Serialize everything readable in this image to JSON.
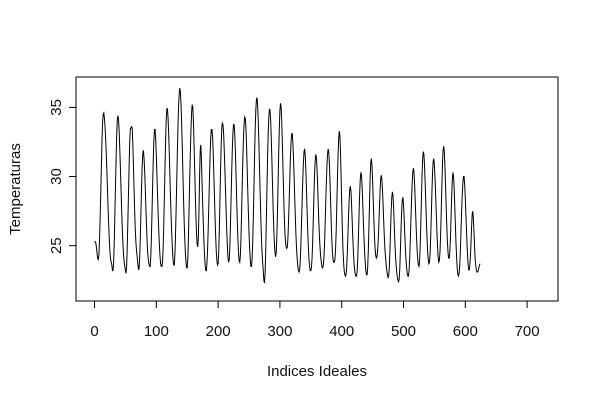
{
  "chart_data": {
    "type": "line",
    "title": "",
    "xlabel": "Indices Ideales",
    "ylabel": "Temperaturas",
    "xlim": [
      -30,
      750
    ],
    "ylim": [
      21.0,
      37.2
    ],
    "x_ticks": [
      0,
      100,
      200,
      300,
      400,
      500,
      600,
      700
    ],
    "y_ticks": [
      25,
      30,
      35
    ],
    "grid": false,
    "legend": "none",
    "line_color": "#000000",
    "series": [
      {
        "x_start": 0,
        "x_step": 1,
        "values": [
          25.3,
          25.3,
          25.2,
          24.9,
          24.5,
          24.1,
          24.0,
          24.3,
          25.3,
          26.9,
          28.7,
          30.6,
          32.5,
          33.9,
          34.5,
          34.6,
          34.2,
          33.6,
          32.7,
          31.6,
          30.4,
          29.0,
          27.6,
          26.4,
          25.3,
          24.5,
          24.0,
          23.8,
          23.6,
          23.2,
          23.2,
          23.9,
          25.4,
          27.5,
          29.5,
          31.5,
          33.2,
          34.2,
          34.4,
          34.0,
          33.1,
          31.8,
          30.4,
          28.9,
          27.4,
          26.1,
          25.1,
          24.3,
          23.8,
          23.5,
          23.2,
          23.0,
          23.6,
          25.0,
          26.9,
          28.9,
          30.9,
          32.6,
          33.5,
          33.5,
          33.6,
          33.5,
          32.3,
          30.7,
          29.0,
          27.4,
          26.1,
          25.2,
          24.6,
          24.2,
          23.7,
          23.3,
          23.3,
          24.1,
          25.5,
          27.3,
          29.1,
          30.6,
          31.6,
          31.9,
          31.4,
          30.5,
          29.3,
          27.9,
          26.6,
          25.4,
          24.5,
          24.0,
          23.7,
          23.5,
          23.5,
          24.2,
          25.5,
          27.4,
          29.4,
          31.2,
          32.6,
          33.4,
          33.4,
          32.7,
          31.5,
          30.1,
          28.6,
          27.2,
          26.0,
          25.0,
          24.2,
          23.7,
          23.5,
          23.5,
          23.8,
          24.8,
          26.5,
          28.5,
          30.6,
          32.6,
          34.1,
          34.9,
          34.9,
          34.2,
          33.1,
          31.6,
          30.0,
          28.4,
          27.0,
          25.8,
          24.8,
          24.0,
          23.6,
          23.6,
          24.3,
          25.7,
          27.6,
          29.6,
          31.7,
          33.6,
          35.1,
          36.0,
          36.4,
          36.1,
          35.2,
          33.8,
          32.1,
          30.2,
          28.4,
          26.8,
          25.5,
          24.5,
          23.8,
          23.4,
          23.4,
          24.1,
          25.7,
          27.7,
          29.8,
          31.7,
          33.3,
          34.6,
          35.2,
          35.0,
          34.0,
          32.4,
          30.6,
          28.8,
          27.2,
          25.9,
          25.1,
          24.9,
          25.6,
          27.5,
          30.0,
          31.9,
          32.3,
          31.2,
          29.5,
          28.0,
          26.6,
          25.3,
          24.3,
          23.6,
          23.2,
          23.2,
          23.8,
          24.8,
          26.3,
          28.1,
          29.9,
          31.5,
          32.8,
          33.4,
          33.4,
          32.9,
          31.8,
          30.3,
          28.7,
          27.1,
          25.7,
          24.6,
          23.9,
          23.6,
          23.7,
          24.6,
          26.3,
          28.4,
          30.6,
          32.4,
          33.6,
          33.9,
          33.7,
          33.0,
          31.8,
          30.4,
          28.9,
          27.4,
          26.0,
          24.9,
          24.1,
          23.8,
          24.0,
          25.0,
          26.6,
          28.5,
          30.4,
          32.0,
          33.2,
          33.8,
          33.7,
          33.0,
          31.7,
          30.1,
          28.4,
          26.8,
          25.5,
          24.5,
          23.9,
          23.8,
          24.3,
          25.6,
          27.4,
          29.4,
          31.3,
          32.8,
          33.8,
          34.3,
          34.2,
          33.5,
          32.2,
          30.6,
          28.9,
          27.3,
          25.9,
          24.8,
          24.0,
          23.5,
          23.5,
          24.1,
          25.3,
          27.1,
          29.3,
          31.5,
          33.5,
          34.8,
          35.6,
          35.7,
          35.1,
          34.0,
          32.4,
          30.6,
          28.8,
          27.1,
          25.7,
          24.6,
          23.8,
          23.2,
          22.5,
          22.3,
          23.0,
          24.6,
          26.8,
          29.1,
          31.3,
          33.1,
          34.3,
          34.9,
          34.8,
          34.1,
          32.8,
          31.2,
          29.4,
          27.7,
          26.3,
          25.2,
          24.5,
          24.2,
          24.5,
          25.6,
          27.4,
          29.5,
          31.6,
          33.5,
          34.8,
          35.3,
          35.0,
          33.9,
          32.3,
          30.5,
          28.8,
          27.2,
          26.0,
          25.3,
          24.9,
          24.8,
          24.9,
          25.6,
          26.8,
          28.3,
          29.9,
          31.4,
          32.5,
          33.1,
          33.1,
          32.4,
          31.3,
          29.9,
          28.4,
          27.0,
          25.7,
          24.7,
          24.0,
          23.5,
          23.2,
          23.1,
          23.3,
          24.0,
          25.2,
          26.7,
          28.3,
          29.8,
          31.0,
          31.8,
          32.0,
          31.5,
          30.4,
          29.0,
          27.5,
          26.1,
          24.9,
          24.0,
          23.5,
          23.2,
          23.2,
          23.4,
          24.1,
          25.3,
          26.9,
          28.6,
          30.1,
          31.1,
          31.6,
          31.4,
          30.6,
          29.4,
          28.0,
          26.7,
          25.6,
          24.8,
          24.2,
          23.8,
          23.5,
          23.4,
          23.5,
          24.0,
          24.9,
          26.3,
          27.9,
          29.4,
          30.7,
          31.6,
          32.0,
          31.8,
          31.0,
          29.7,
          28.2,
          26.7,
          25.4,
          24.5,
          24.0,
          23.8,
          23.8,
          24.0,
          24.7,
          26.0,
          27.8,
          29.7,
          31.4,
          32.7,
          33.3,
          33.0,
          31.8,
          30.0,
          28.0,
          26.2,
          24.8,
          23.8,
          23.2,
          22.9,
          22.8,
          22.9,
          23.4,
          24.4,
          25.7,
          27.1,
          28.3,
          29.1,
          29.3,
          28.9,
          27.9,
          26.7,
          25.5,
          24.5,
          23.7,
          23.2,
          22.9,
          22.8,
          22.8,
          23.2,
          24.1,
          25.6,
          27.2,
          28.7,
          29.8,
          30.3,
          30.1,
          29.3,
          28.1,
          26.8,
          25.6,
          24.6,
          23.8,
          23.2,
          22.9,
          22.9,
          23.4,
          24.6,
          26.3,
          28.2,
          29.9,
          31.0,
          31.3,
          30.8,
          29.7,
          28.3,
          26.9,
          25.7,
          24.8,
          24.3,
          24.1,
          24.2,
          24.6,
          25.3,
          26.4,
          27.7,
          28.9,
          29.8,
          30.1,
          29.8,
          29.0,
          27.9,
          26.7,
          25.6,
          24.7,
          24.1,
          23.6,
          23.2,
          22.9,
          22.7,
          22.8,
          23.4,
          24.6,
          26.1,
          27.5,
          28.5,
          28.9,
          28.6,
          27.7,
          26.5,
          25.3,
          24.3,
          23.6,
          23.1,
          22.7,
          22.5,
          22.4,
          22.6,
          23.4,
          24.7,
          26.2,
          27.5,
          28.3,
          28.5,
          28.0,
          27.0,
          25.9,
          24.8,
          24.0,
          23.4,
          23.0,
          22.8,
          22.8,
          23.2,
          24.1,
          25.4,
          26.9,
          28.3,
          29.5,
          30.3,
          30.6,
          30.3,
          29.4,
          28.2,
          26.9,
          25.7,
          24.7,
          24.0,
          23.6,
          23.5,
          23.9,
          25.0,
          26.6,
          28.4,
          30.1,
          31.3,
          31.8,
          31.6,
          30.8,
          29.6,
          28.2,
          26.8,
          25.6,
          24.6,
          24.0,
          23.7,
          23.8,
          24.4,
          25.6,
          27.2,
          28.9,
          30.3,
          31.1,
          31.3,
          30.8,
          29.9,
          28.7,
          27.4,
          26.1,
          25.0,
          24.2,
          23.8,
          23.9,
          24.5,
          25.7,
          27.4,
          29.2,
          30.8,
          31.9,
          32.2,
          31.8,
          30.8,
          29.4,
          27.9,
          26.5,
          25.3,
          24.5,
          24.1,
          24.1,
          24.6,
          25.6,
          27.1,
          28.6,
          29.8,
          30.3,
          30.0,
          29.1,
          27.8,
          26.4,
          25.1,
          24.1,
          23.3,
          22.9,
          22.8,
          23.0,
          23.6,
          24.6,
          26.0,
          27.4,
          28.6,
          29.5,
          30.0,
          30.0,
          29.4,
          28.4,
          27.2,
          26.0,
          24.9,
          24.0,
          23.4,
          23.2,
          23.4,
          24.0,
          25.0,
          26.2,
          27.2,
          27.5,
          27.0,
          26.0,
          24.9,
          24.0,
          23.5,
          23.2,
          23.1,
          23.1,
          23.2,
          23.4,
          23.6,
          23.7
        ]
      }
    ]
  }
}
